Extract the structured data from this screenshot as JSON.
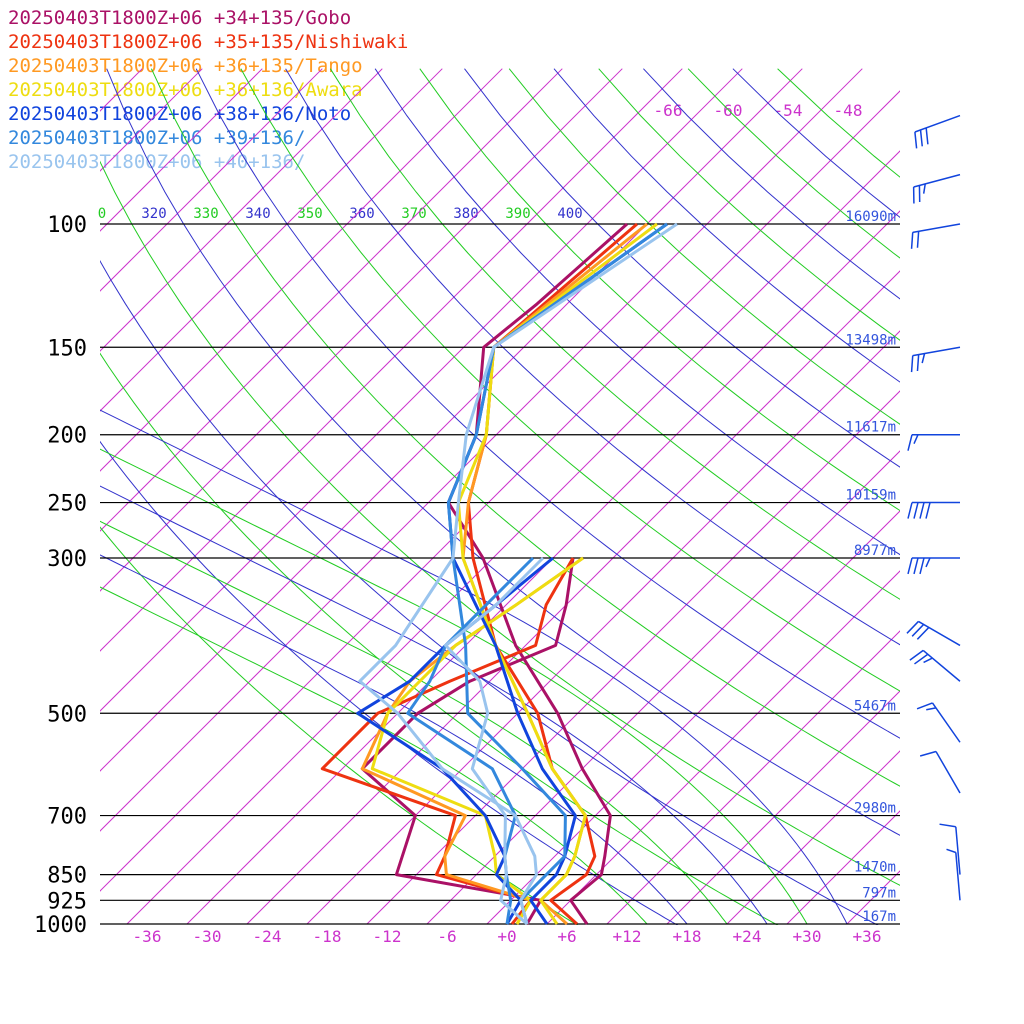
{
  "chart_data": {
    "type": "line",
    "pressure_levels": [
      100,
      150,
      200,
      250,
      300,
      500,
      700,
      850,
      925,
      1000
    ],
    "pressure_labels": [
      "100",
      "150",
      "200",
      "250",
      "300",
      "500",
      "700",
      "850",
      "925",
      "1000"
    ],
    "geopotential_heights": [
      {
        "p": 100,
        "label": "16090m"
      },
      {
        "p": 150,
        "label": "13498m"
      },
      {
        "p": 200,
        "label": "11617m"
      },
      {
        "p": 250,
        "label": "10159m"
      },
      {
        "p": 300,
        "label": "8977m"
      },
      {
        "p": 500,
        "label": "5467m"
      },
      {
        "p": 700,
        "label": "2980m"
      },
      {
        "p": 850,
        "label": "1470m"
      },
      {
        "p": 925,
        "label": "797m"
      },
      {
        "p": 1000,
        "label": "167m"
      }
    ],
    "temperature_ticks": [
      "-36",
      "-30",
      "-24",
      "-18",
      "-12",
      "-6",
      "+0",
      "+6",
      "+12",
      "+18",
      "+24",
      "+30",
      "+36"
    ],
    "temperature_tick_values": [
      -36,
      -30,
      -24,
      -18,
      -12,
      -6,
      0,
      6,
      12,
      18,
      24,
      30,
      36
    ],
    "upper_temperature_labels": [
      "-66",
      "-60",
      "-54",
      "-48"
    ],
    "theta_labels": [
      {
        "label": "0",
        "color": "#22cc22"
      },
      {
        "label": "320",
        "color": "#3333cc"
      },
      {
        "label": "330",
        "color": "#22cc22"
      },
      {
        "label": "340",
        "color": "#3333cc"
      },
      {
        "label": "350",
        "color": "#22cc22"
      },
      {
        "label": "360",
        "color": "#3333cc"
      },
      {
        "label": "370",
        "color": "#22cc22"
      },
      {
        "label": "380",
        "color": "#3333cc"
      },
      {
        "label": "390",
        "color": "#22cc22"
      },
      {
        "label": "400",
        "color": "#3333cc"
      }
    ],
    "series": [
      {
        "name": "20250403T1800Z+06 +34+135/Gobo",
        "color": "#aa1166",
        "temperature": [
          [
            100,
            -58
          ],
          [
            130,
            -59
          ],
          [
            150,
            -60
          ],
          [
            200,
            -52
          ],
          [
            250,
            -48
          ],
          [
            300,
            -39
          ],
          [
            400,
            -27
          ],
          [
            500,
            -16
          ],
          [
            600,
            -8
          ],
          [
            700,
            -0.5
          ],
          [
            800,
            3
          ],
          [
            850,
            4.5
          ],
          [
            925,
            4
          ],
          [
            1000,
            8
          ]
        ],
        "dewpoint": [
          [
            300,
            -30
          ],
          [
            350,
            -26
          ],
          [
            400,
            -23
          ],
          [
            450,
            -28
          ],
          [
            500,
            -30
          ],
          [
            600,
            -30
          ],
          [
            700,
            -20
          ],
          [
            850,
            -16
          ],
          [
            925,
            1
          ],
          [
            1000,
            2
          ]
        ]
      },
      {
        "name": "20250403T1800Z+06 +35+135/Nishiwaki",
        "color": "#ee3311",
        "temperature": [
          [
            100,
            -57
          ],
          [
            150,
            -59
          ],
          [
            200,
            -51
          ],
          [
            250,
            -46
          ],
          [
            300,
            -40
          ],
          [
            400,
            -29
          ],
          [
            500,
            -18
          ],
          [
            600,
            -11
          ],
          [
            700,
            -3
          ],
          [
            800,
            2
          ],
          [
            850,
            3
          ],
          [
            925,
            2
          ],
          [
            1000,
            7
          ]
        ],
        "dewpoint": [
          [
            300,
            -30
          ],
          [
            350,
            -28
          ],
          [
            400,
            -25
          ],
          [
            450,
            -30
          ],
          [
            500,
            -34
          ],
          [
            600,
            -34
          ],
          [
            700,
            -16
          ],
          [
            800,
            -13
          ],
          [
            850,
            -12
          ],
          [
            925,
            0
          ],
          [
            1000,
            0.5
          ]
        ]
      },
      {
        "name": "20250403T1800Z+06 +36+135/Tango",
        "color": "#ff9922",
        "temperature": [
          [
            100,
            -56
          ],
          [
            150,
            -59
          ],
          [
            200,
            -51
          ],
          [
            250,
            -46
          ],
          [
            300,
            -41
          ],
          [
            400,
            -29
          ],
          [
            500,
            -19
          ],
          [
            600,
            -11
          ],
          [
            700,
            -3
          ],
          [
            800,
            0
          ],
          [
            850,
            1
          ],
          [
            925,
            1
          ],
          [
            1000,
            6
          ]
        ],
        "dewpoint": [
          [
            300,
            -29
          ],
          [
            350,
            -31
          ],
          [
            400,
            -33
          ],
          [
            450,
            -34
          ],
          [
            500,
            -33
          ],
          [
            600,
            -30
          ],
          [
            700,
            -15
          ],
          [
            800,
            -13
          ],
          [
            850,
            -11
          ],
          [
            925,
            0
          ],
          [
            1000,
            1
          ]
        ]
      },
      {
        "name": "20250403T1800Z+06 +36+136/Awara",
        "color": "#eedd11",
        "temperature": [
          [
            100,
            -55
          ],
          [
            150,
            -59
          ],
          [
            200,
            -51
          ],
          [
            250,
            -47
          ],
          [
            300,
            -41
          ],
          [
            400,
            -29
          ],
          [
            500,
            -19
          ],
          [
            600,
            -11
          ],
          [
            700,
            -3
          ],
          [
            800,
            0
          ],
          [
            850,
            1
          ],
          [
            925,
            1
          ],
          [
            1000,
            5
          ]
        ],
        "dewpoint": [
          [
            300,
            -29
          ],
          [
            350,
            -31
          ],
          [
            400,
            -33
          ],
          [
            450,
            -33
          ],
          [
            500,
            -33
          ],
          [
            600,
            -29
          ],
          [
            700,
            -13
          ],
          [
            800,
            -8
          ],
          [
            850,
            -6
          ],
          [
            925,
            0
          ],
          [
            1000,
            1
          ]
        ]
      },
      {
        "name": "20250403T1800Z+06 +38+136/Noto",
        "color": "#1144dd",
        "temperature": [
          [
            100,
            -54
          ],
          [
            150,
            -59
          ],
          [
            200,
            -52
          ],
          [
            250,
            -48
          ],
          [
            300,
            -42
          ],
          [
            400,
            -29
          ],
          [
            500,
            -20
          ],
          [
            600,
            -12
          ],
          [
            700,
            -4
          ],
          [
            800,
            -1
          ],
          [
            850,
            0
          ],
          [
            925,
            0
          ],
          [
            1000,
            4
          ]
        ],
        "dewpoint": [
          [
            300,
            -32
          ],
          [
            350,
            -33
          ],
          [
            400,
            -34
          ],
          [
            450,
            -34
          ],
          [
            500,
            -36
          ],
          [
            600,
            -22
          ],
          [
            700,
            -13
          ],
          [
            800,
            -7
          ],
          [
            850,
            -6
          ],
          [
            925,
            -1
          ],
          [
            1000,
            0
          ]
        ]
      },
      {
        "name": "20250403T1800Z+06 +39+136/",
        "color": "#3388dd",
        "temperature": [
          [
            100,
            -54
          ],
          [
            150,
            -59
          ],
          [
            200,
            -52
          ],
          [
            250,
            -48
          ],
          [
            300,
            -42
          ],
          [
            400,
            -32
          ],
          [
            500,
            -25
          ],
          [
            600,
            -14
          ],
          [
            700,
            -5
          ],
          [
            800,
            -1
          ],
          [
            850,
            -1
          ],
          [
            925,
            -1
          ],
          [
            1000,
            2
          ]
        ],
        "dewpoint": [
          [
            300,
            -34
          ],
          [
            350,
            -34
          ],
          [
            400,
            -34
          ],
          [
            450,
            -32
          ],
          [
            500,
            -31
          ],
          [
            600,
            -17
          ],
          [
            700,
            -10
          ],
          [
            800,
            -7
          ],
          [
            850,
            -5
          ],
          [
            925,
            -2
          ],
          [
            1000,
            0
          ]
        ]
      },
      {
        "name": "20250403T1800Z+06 +40+136/",
        "color": "#99c4ee",
        "temperature": [
          [
            100,
            -53
          ],
          [
            150,
            -59
          ],
          [
            200,
            -53
          ],
          [
            250,
            -47
          ],
          [
            300,
            -42
          ],
          [
            400,
            -39
          ],
          [
            450,
            -39
          ],
          [
            500,
            -32
          ],
          [
            600,
            -22
          ],
          [
            700,
            -10
          ],
          [
            800,
            -4
          ],
          [
            850,
            -2
          ],
          [
            925,
            -1
          ],
          [
            1000,
            2
          ]
        ],
        "dewpoint": [
          [
            300,
            -33
          ],
          [
            350,
            -33
          ],
          [
            400,
            -34
          ],
          [
            450,
            -27
          ],
          [
            500,
            -23
          ],
          [
            600,
            -19
          ],
          [
            700,
            -11
          ],
          [
            800,
            -7
          ],
          [
            850,
            -5
          ],
          [
            925,
            -3
          ],
          [
            1000,
            2
          ]
        ]
      }
    ],
    "wind_barbs": [
      {
        "p": 70,
        "speed_kt": 30,
        "dir_deg": 250
      },
      {
        "p": 85,
        "speed_kt": 25,
        "dir_deg": 255
      },
      {
        "p": 100,
        "speed_kt": 20,
        "dir_deg": 260
      },
      {
        "p": 150,
        "speed_kt": 25,
        "dir_deg": 260
      },
      {
        "p": 200,
        "speed_kt": 15,
        "dir_deg": 270
      },
      {
        "p": 250,
        "speed_kt": 40,
        "dir_deg": 270
      },
      {
        "p": 300,
        "speed_kt": 35,
        "dir_deg": 270
      },
      {
        "p": 400,
        "speed_kt": 30,
        "dir_deg": 300
      },
      {
        "p": 450,
        "speed_kt": 25,
        "dir_deg": 310
      },
      {
        "p": 550,
        "speed_kt": 15,
        "dir_deg": 325
      },
      {
        "p": 650,
        "speed_kt": 10,
        "dir_deg": 330
      },
      {
        "p": 850,
        "speed_kt": 10,
        "dir_deg": 355
      },
      {
        "p": 925,
        "speed_kt": 5,
        "dir_deg": 355
      }
    ],
    "xlim": [
      -40,
      40
    ],
    "ylim": [
      1000,
      100
    ],
    "y_scale": "log",
    "skew": true
  },
  "colors": {
    "isotherm": "#cc33cc",
    "theta_dry_a": "#22cc22",
    "theta_dry_b": "#3333cc",
    "isobar": "#000000",
    "height_label": "#3355dd",
    "wind_barb": "#1144dd"
  }
}
